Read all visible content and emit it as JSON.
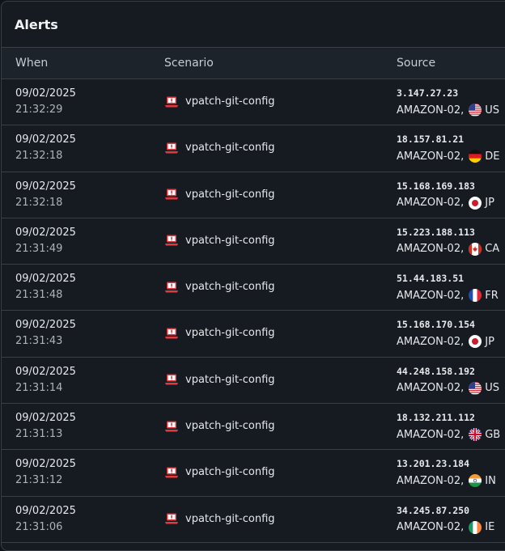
{
  "panel": {
    "title": "Alerts"
  },
  "columns": {
    "when": "When",
    "scenario": "Scenario",
    "source": "Source"
  },
  "alerts": [
    {
      "date": "09/02/2025",
      "time": "21:32:29",
      "scenario": "vpatch-git-config",
      "ip": "3.147.27.23",
      "as": "AMAZON-02,",
      "country": "US"
    },
    {
      "date": "09/02/2025",
      "time": "21:32:18",
      "scenario": "vpatch-git-config",
      "ip": "18.157.81.21",
      "as": "AMAZON-02,",
      "country": "DE"
    },
    {
      "date": "09/02/2025",
      "time": "21:32:18",
      "scenario": "vpatch-git-config",
      "ip": "15.168.169.183",
      "as": "AMAZON-02,",
      "country": "JP"
    },
    {
      "date": "09/02/2025",
      "time": "21:31:49",
      "scenario": "vpatch-git-config",
      "ip": "15.223.188.113",
      "as": "AMAZON-02,",
      "country": "CA"
    },
    {
      "date": "09/02/2025",
      "time": "21:31:48",
      "scenario": "vpatch-git-config",
      "ip": "51.44.183.51",
      "as": "AMAZON-02,",
      "country": "FR"
    },
    {
      "date": "09/02/2025",
      "time": "21:31:43",
      "scenario": "vpatch-git-config",
      "ip": "15.168.170.154",
      "as": "AMAZON-02,",
      "country": "JP"
    },
    {
      "date": "09/02/2025",
      "time": "21:31:14",
      "scenario": "vpatch-git-config",
      "ip": "44.248.158.192",
      "as": "AMAZON-02,",
      "country": "US"
    },
    {
      "date": "09/02/2025",
      "time": "21:31:13",
      "scenario": "vpatch-git-config",
      "ip": "18.132.211.112",
      "as": "AMAZON-02,",
      "country": "GB"
    },
    {
      "date": "09/02/2025",
      "time": "21:31:12",
      "scenario": "vpatch-git-config",
      "ip": "13.201.23.184",
      "as": "AMAZON-02,",
      "country": "IN"
    },
    {
      "date": "09/02/2025",
      "time": "21:31:06",
      "scenario": "vpatch-git-config",
      "ip": "34.245.87.250",
      "as": "AMAZON-02,",
      "country": "IE"
    }
  ],
  "icons": {
    "scenario": "alert-laptop-icon"
  },
  "colors": {
    "accent_red": "#e0393e",
    "background": "#161b22",
    "border": "#3a3f47"
  }
}
